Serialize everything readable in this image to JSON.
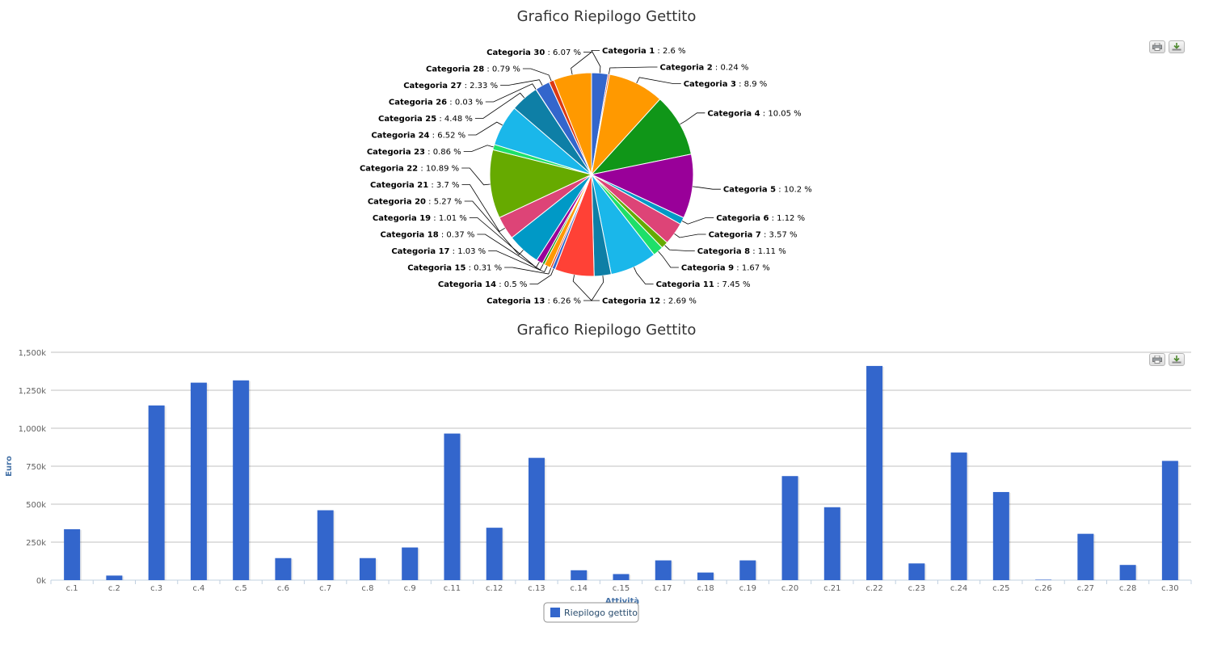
{
  "toolbar": {
    "print_icon": "print-icon",
    "export_icon": "download-icon"
  },
  "colors": {
    "bar": "#3366cc",
    "legend_bar": "#3366cc",
    "axis_label": "#4572a7"
  },
  "chart_data": [
    {
      "type": "pie",
      "title": "Grafico Riepilogo Gettito",
      "slices": [
        {
          "name": "Categoria 1",
          "value": 2.6,
          "color": "#3366cc"
        },
        {
          "name": "Categoria 2",
          "value": 0.24,
          "color": "#dc3912"
        },
        {
          "name": "Categoria 3",
          "value": 8.9,
          "color": "#ff9900"
        },
        {
          "name": "Categoria 4",
          "value": 10.05,
          "color": "#109618"
        },
        {
          "name": "Categoria 5",
          "value": 10.2,
          "color": "#990099"
        },
        {
          "name": "Categoria 6",
          "value": 1.12,
          "color": "#0099c6"
        },
        {
          "name": "Categoria 7",
          "value": 3.57,
          "color": "#dd4477"
        },
        {
          "name": "Categoria 8",
          "value": 1.11,
          "color": "#66aa00"
        },
        {
          "name": "Categoria 9",
          "value": 1.67,
          "color": "#1ee069"
        },
        {
          "name": "Categoria 11",
          "value": 7.45,
          "color": "#1ab7ea"
        },
        {
          "name": "Categoria 12",
          "value": 2.69,
          "color": "#0e7fa6"
        },
        {
          "name": "Categoria 13",
          "value": 6.26,
          "color": "#ff4136"
        },
        {
          "name": "Categoria 14",
          "value": 0.5,
          "color": "#3366cc"
        },
        {
          "name": "Categoria 15",
          "value": 0.31,
          "color": "#dc3912"
        },
        {
          "name": "Categoria 17",
          "value": 1.03,
          "color": "#ff9900"
        },
        {
          "name": "Categoria 18",
          "value": 0.37,
          "color": "#109618"
        },
        {
          "name": "Categoria 19",
          "value": 1.01,
          "color": "#990099"
        },
        {
          "name": "Categoria 20",
          "value": 5.27,
          "color": "#0099c6"
        },
        {
          "name": "Categoria 21",
          "value": 3.7,
          "color": "#dd4477"
        },
        {
          "name": "Categoria 22",
          "value": 10.89,
          "color": "#66aa00"
        },
        {
          "name": "Categoria 23",
          "value": 0.86,
          "color": "#1ee069"
        },
        {
          "name": "Categoria 24",
          "value": 6.52,
          "color": "#1ab7ea"
        },
        {
          "name": "Categoria 25",
          "value": 4.48,
          "color": "#0e7fa6"
        },
        {
          "name": "Categoria 26",
          "value": 0.03,
          "color": "#ff4136"
        },
        {
          "name": "Categoria 27",
          "value": 2.33,
          "color": "#3366cc"
        },
        {
          "name": "Categoria 28",
          "value": 0.79,
          "color": "#dc3912"
        },
        {
          "name": "Categoria 30",
          "value": 6.07,
          "color": "#ff9900"
        }
      ],
      "label_separator": " : ",
      "label_unit": " %"
    },
    {
      "type": "bar",
      "title": "Grafico Riepilogo Gettito",
      "xlabel": "Attività",
      "ylabel": "Euro",
      "ylim": [
        0,
        1500000
      ],
      "yticks": [
        {
          "value": 0,
          "label": "0k"
        },
        {
          "value": 250000,
          "label": "250k"
        },
        {
          "value": 500000,
          "label": "500k"
        },
        {
          "value": 750000,
          "label": "750k"
        },
        {
          "value": 1000000,
          "label": "1,000k"
        },
        {
          "value": 1250000,
          "label": "1,250k"
        },
        {
          "value": 1500000,
          "label": "1,500k"
        }
      ],
      "grid": true,
      "legend": "bottom-center",
      "categories": [
        "c.1",
        "c.2",
        "c.3",
        "c.4",
        "c.5",
        "c.6",
        "c.7",
        "c.8",
        "c.9",
        "c.11",
        "c.12",
        "c.13",
        "c.14",
        "c.15",
        "c.17",
        "c.18",
        "c.19",
        "c.20",
        "c.21",
        "c.22",
        "c.23",
        "c.24",
        "c.25",
        "c.26",
        "c.27",
        "c.28",
        "c.30"
      ],
      "series": [
        {
          "name": "Riepilogo gettito",
          "values": [
            335000,
            30000,
            1150000,
            1300000,
            1315000,
            145000,
            460000,
            145000,
            215000,
            965000,
            345000,
            805000,
            65000,
            40000,
            130000,
            50000,
            130000,
            685000,
            480000,
            1410000,
            110000,
            840000,
            580000,
            3000,
            305000,
            100000,
            785000
          ]
        }
      ]
    }
  ]
}
